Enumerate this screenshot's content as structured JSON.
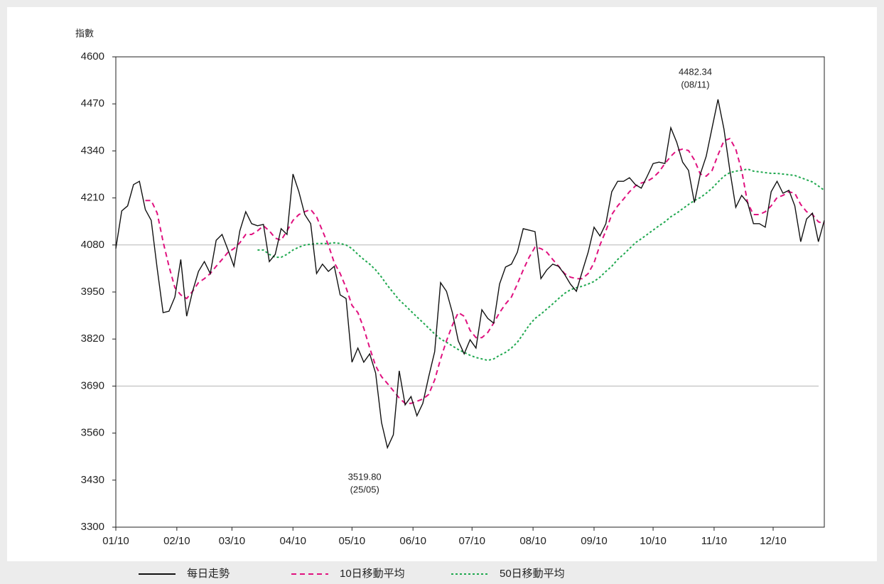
{
  "chart_data": {
    "type": "line",
    "y_label": "指數",
    "xlim": [
      0,
      360
    ],
    "xticks": [
      {
        "value": 0,
        "label": "01/10"
      },
      {
        "value": 31,
        "label": "02/10"
      },
      {
        "value": 59,
        "label": "03/10"
      },
      {
        "value": 90,
        "label": "04/10"
      },
      {
        "value": 120,
        "label": "05/10"
      },
      {
        "value": 151,
        "label": "06/10"
      },
      {
        "value": 181,
        "label": "07/10"
      },
      {
        "value": 212,
        "label": "08/10"
      },
      {
        "value": 243,
        "label": "09/10"
      },
      {
        "value": 273,
        "label": "10/10"
      },
      {
        "value": 304,
        "label": "11/10"
      },
      {
        "value": 334,
        "label": "12/10"
      }
    ],
    "ylim": [
      3300,
      4600
    ],
    "yticks": [
      3300,
      3430,
      3560,
      3690,
      3820,
      3950,
      4080,
      4210,
      4340,
      4470,
      4600
    ],
    "reference_lines": [
      4080,
      3690
    ],
    "x": [
      0,
      3,
      6,
      9,
      12,
      15,
      18,
      21,
      24,
      27,
      30,
      33,
      36,
      39,
      42,
      45,
      48,
      51,
      54,
      57,
      60,
      63,
      66,
      69,
      72,
      75,
      78,
      81,
      84,
      87,
      90,
      93,
      96,
      99,
      102,
      105,
      108,
      111,
      114,
      117,
      120,
      123,
      126,
      129,
      132,
      135,
      138,
      141,
      144,
      147,
      150,
      153,
      156,
      159,
      162,
      165,
      168,
      171,
      174,
      177,
      180,
      183,
      186,
      189,
      192,
      195,
      198,
      201,
      204,
      207,
      210,
      213,
      216,
      219,
      222,
      225,
      228,
      231,
      234,
      237,
      240,
      243,
      246,
      249,
      252,
      255,
      258,
      261,
      264,
      267,
      270,
      273,
      276,
      279,
      282,
      285,
      288,
      291,
      294,
      297,
      300,
      303,
      306,
      309,
      312,
      315,
      318,
      321,
      324,
      327,
      330,
      333,
      336,
      339,
      342,
      345,
      348,
      351,
      354,
      357,
      360
    ],
    "series": [
      {
        "name": "每日走勢",
        "color": "#111111",
        "style": "solid",
        "values": [
          4070,
          4174,
          4188,
          4247,
          4256,
          4178,
          4148,
          4015,
          3893,
          3897,
          3936,
          4040,
          3883,
          3952,
          4007,
          4034,
          4001,
          4093,
          4109,
          4066,
          4021,
          4119,
          4172,
          4139,
          4133,
          4137,
          4034,
          4054,
          4125,
          4109,
          4276,
          4227,
          4164,
          4139,
          4001,
          4027,
          4007,
          4021,
          3942,
          3932,
          3756,
          3795,
          3756,
          3779,
          3726,
          3589,
          3519.8,
          3555,
          3732,
          3638,
          3661,
          3608,
          3642,
          3716,
          3785,
          3976,
          3952,
          3893,
          3815,
          3779,
          3818,
          3795,
          3901,
          3877,
          3864,
          3972,
          4019,
          4027,
          4060,
          4125,
          4121,
          4117,
          3987,
          4011,
          4027,
          4021,
          3999,
          3972,
          3952,
          4007,
          4060,
          4129,
          4105,
          4139,
          4227,
          4256,
          4256,
          4266,
          4247,
          4237,
          4270,
          4305,
          4309,
          4305,
          4404,
          4364,
          4309,
          4286,
          4197,
          4276,
          4325,
          4404,
          4482.34,
          4400,
          4286,
          4184,
          4217,
          4197,
          4139,
          4139,
          4129,
          4227,
          4256,
          4223,
          4231,
          4188,
          4089,
          4152,
          4168,
          4089,
          4148
        ]
      },
      {
        "name": "10日移動平均",
        "color": "#e0117f",
        "style": "dashed",
        "values": [
          null,
          null,
          null,
          null,
          null,
          4203,
          4203,
          4168,
          4089,
          4021,
          3962,
          3942,
          3932,
          3952,
          3976,
          3987,
          4001,
          4021,
          4040,
          4060,
          4070,
          4086,
          4109,
          4109,
          4119,
          4133,
          4119,
          4099,
          4093,
          4119,
          4148,
          4164,
          4172,
          4178,
          4158,
          4119,
          4080,
          4031,
          4001,
          3962,
          3913,
          3893,
          3850,
          3795,
          3746,
          3716,
          3697,
          3677,
          3657,
          3642,
          3642,
          3648,
          3654,
          3667,
          3707,
          3765,
          3815,
          3858,
          3893,
          3883,
          3844,
          3824,
          3824,
          3838,
          3864,
          3893,
          3917,
          3936,
          3972,
          4011,
          4046,
          4074,
          4070,
          4060,
          4040,
          4021,
          4001,
          3991,
          3987,
          3987,
          4001,
          4031,
          4080,
          4119,
          4164,
          4188,
          4207,
          4227,
          4243,
          4251,
          4256,
          4266,
          4282,
          4305,
          4325,
          4341,
          4345,
          4341,
          4315,
          4276,
          4270,
          4286,
          4329,
          4368,
          4374,
          4345,
          4286,
          4197,
          4164,
          4164,
          4172,
          4188,
          4211,
          4217,
          4227,
          4223,
          4192,
          4172,
          4164,
          4144,
          4139
        ]
      },
      {
        "name": "50日移動平均",
        "color": "#1fa84f",
        "style": "dotted",
        "values": [
          null,
          null,
          null,
          null,
          null,
          null,
          null,
          null,
          null,
          null,
          null,
          null,
          null,
          null,
          null,
          null,
          null,
          null,
          null,
          null,
          null,
          null,
          null,
          null,
          4066,
          4066,
          4054,
          4046,
          4046,
          4054,
          4066,
          4074,
          4080,
          4082,
          4084,
          4084,
          4084,
          4086,
          4084,
          4080,
          4070,
          4054,
          4040,
          4027,
          4011,
          3991,
          3968,
          3948,
          3928,
          3913,
          3897,
          3881,
          3866,
          3850,
          3834,
          3820,
          3811,
          3801,
          3791,
          3783,
          3775,
          3769,
          3765,
          3761,
          3765,
          3775,
          3783,
          3795,
          3811,
          3834,
          3858,
          3877,
          3889,
          3903,
          3917,
          3932,
          3946,
          3956,
          3962,
          3966,
          3972,
          3979,
          3991,
          4007,
          4021,
          4040,
          4054,
          4070,
          4086,
          4097,
          4109,
          4121,
          4133,
          4144,
          4158,
          4168,
          4180,
          4192,
          4203,
          4211,
          4223,
          4237,
          4254,
          4270,
          4280,
          4284,
          4286,
          4290,
          4284,
          4282,
          4280,
          4278,
          4278,
          4276,
          4274,
          4272,
          4266,
          4260,
          4254,
          4243,
          4231
        ]
      }
    ],
    "annotations": [
      {
        "text": "4482.34",
        "date": "(08/11)",
        "x": 306,
        "y": 4482.34
      },
      {
        "text": "3519.80",
        "date": "(25/05)",
        "x": 138,
        "y": 3519.8
      }
    ]
  }
}
